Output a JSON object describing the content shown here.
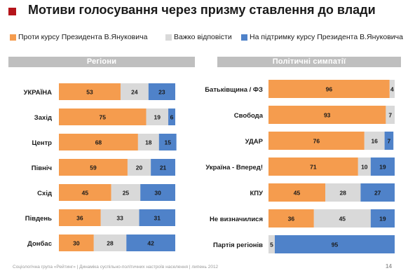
{
  "title": "Мотиви голосування через призму ставлення до влади",
  "colors": {
    "against": "#f59c4e",
    "hard": "#d9d9d9",
    "support": "#4f82c9",
    "accent": "#b5141a",
    "header_bg": "#bfbfbf"
  },
  "legend": [
    {
      "label": "Проти курсу Президента В.Януковича",
      "color": "#f59c4e"
    },
    {
      "label": "Важко відповісти",
      "color": "#d9d9d9"
    },
    {
      "label": "На підтримку курсу Президента В.Януковича",
      "color": "#4f82c9"
    }
  ],
  "panels": {
    "left_header": "Регіони",
    "right_header": "Політичні симпатії"
  },
  "chart_data": [
    {
      "type": "bar",
      "stacked": true,
      "orientation": "horizontal",
      "title": "Регіони",
      "categories": [
        "УКРАЇНА",
        "Захід",
        "Центр",
        "Північ",
        "Схід",
        "Південь",
        "Донбас"
      ],
      "series": [
        {
          "name": "Проти курсу Президента В.Януковича",
          "values": [
            53,
            75,
            68,
            59,
            45,
            36,
            30
          ]
        },
        {
          "name": "Важко відповісти",
          "values": [
            24,
            19,
            18,
            20,
            25,
            33,
            28
          ]
        },
        {
          "name": "На підтримку курсу Президента В.Януковича",
          "values": [
            23,
            6,
            15,
            21,
            30,
            31,
            42
          ]
        }
      ],
      "xlim": [
        0,
        100
      ]
    },
    {
      "type": "bar",
      "stacked": true,
      "orientation": "horizontal",
      "title": "Політичні симпатії",
      "categories": [
        "Батьківщина / ФЗ",
        "Свобода",
        "УДАР",
        "Україна - Вперед!",
        "КПУ",
        "Не визначилися",
        "Партія регіонів"
      ],
      "series": [
        {
          "name": "Проти курсу Президента В.Януковича",
          "values": [
            96,
            93,
            76,
            71,
            45,
            36,
            0
          ]
        },
        {
          "name": "Важко відповісти",
          "values": [
            4,
            7,
            16,
            10,
            28,
            45,
            5
          ]
        },
        {
          "name": "На підтримку курсу Президента В.Януковича",
          "values": [
            0,
            0,
            7,
            19,
            27,
            19,
            95
          ]
        }
      ],
      "xlim": [
        0,
        100
      ]
    }
  ],
  "footer": "Соціологічна група «Рейтинг» | Динаміка суспільно-політичних настроїв населення | липень 2012",
  "page_number": "14"
}
